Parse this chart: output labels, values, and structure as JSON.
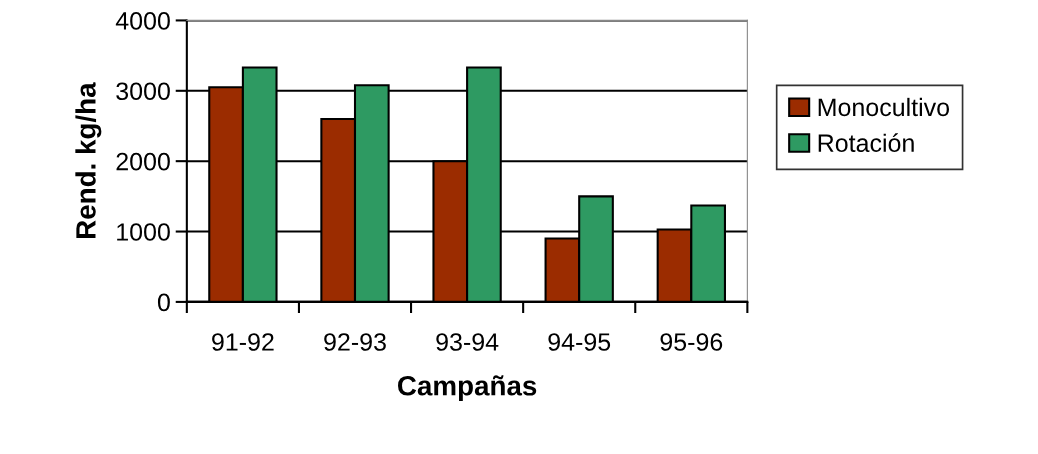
{
  "chart_data": {
    "type": "bar",
    "xlabel": "Campañas",
    "ylabel": "Rend. kg/ha",
    "categories": [
      "91-92",
      "92-93",
      "93-94",
      "94-95",
      "95-96"
    ],
    "series": [
      {
        "name": "Monocultivo",
        "color": "#9b2c00",
        "values": [
          3050,
          2600,
          2000,
          900,
          1030
        ]
      },
      {
        "name": "Rotación",
        "color": "#2e9a62",
        "values": [
          3330,
          3080,
          3330,
          1500,
          1370
        ]
      }
    ],
    "ylim": [
      0,
      4000
    ],
    "yticks": [
      0,
      1000,
      2000,
      3000,
      4000
    ],
    "grid": "y",
    "legend": "right"
  }
}
